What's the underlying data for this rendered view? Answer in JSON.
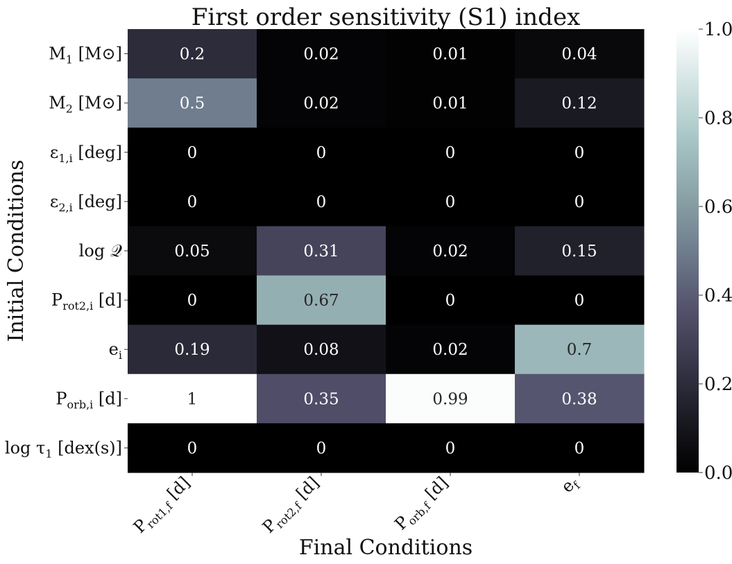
{
  "chart_data": {
    "type": "heatmap",
    "title": "First order sensitivity (S1) index",
    "xlabel": "Final Conditions",
    "ylabel": "Initial Conditions",
    "columns": [
      {
        "base": "P",
        "sub": "rot1,f",
        "unit": " [d]"
      },
      {
        "base": "P",
        "sub": "rot2,f",
        "unit": " [d]"
      },
      {
        "base": "P",
        "sub": "orb,f",
        "unit": " [d]"
      },
      {
        "base": "e",
        "sub": "f",
        "unit": ""
      }
    ],
    "rows": [
      {
        "base": "M",
        "sub": "1",
        "unit": " [M⊙]"
      },
      {
        "base": "M",
        "sub": "2",
        "unit": " [M⊙]"
      },
      {
        "base": "ε",
        "sub": "1,i",
        "unit": " [deg]"
      },
      {
        "base": "ε",
        "sub": "2,i",
        "unit": " [deg]"
      },
      {
        "base": "log 𝒬",
        "sub": "",
        "unit": ""
      },
      {
        "base": "P",
        "sub": "rot2,i",
        "unit": " [d]"
      },
      {
        "base": "e",
        "sub": "i",
        "unit": ""
      },
      {
        "base": "P",
        "sub": "orb,i",
        "unit": " [d]"
      },
      {
        "base": "log τ",
        "sub": "1",
        "unit": " [dex(s)]"
      }
    ],
    "values": [
      [
        0.2,
        0.02,
        0.01,
        0.04
      ],
      [
        0.5,
        0.02,
        0.01,
        0.12
      ],
      [
        0,
        0,
        0,
        0
      ],
      [
        0,
        0,
        0,
        0
      ],
      [
        0.05,
        0.31,
        0.02,
        0.15
      ],
      [
        0,
        0.67,
        0,
        0
      ],
      [
        0.19,
        0.08,
        0.02,
        0.7
      ],
      [
        1,
        0.35,
        0.99,
        0.38
      ],
      [
        0,
        0,
        0,
        0
      ]
    ],
    "labels": [
      [
        "0.2",
        "0.02",
        "0.01",
        "0.04"
      ],
      [
        "0.5",
        "0.02",
        "0.01",
        "0.12"
      ],
      [
        "0",
        "0",
        "0",
        "0"
      ],
      [
        "0",
        "0",
        "0",
        "0"
      ],
      [
        "0.05",
        "0.31",
        "0.02",
        "0.15"
      ],
      [
        "0",
        "0.67",
        "0",
        "0"
      ],
      [
        "0.19",
        "0.08",
        "0.02",
        "0.7"
      ],
      [
        "1",
        "0.35",
        "0.99",
        "0.38"
      ],
      [
        "0",
        "0",
        "0",
        "0"
      ]
    ],
    "colorbar": {
      "range": [
        0.0,
        1.0
      ],
      "ticks": [
        0.0,
        0.2,
        0.4,
        0.6,
        0.8,
        1.0
      ],
      "tick_labels": [
        "0.0",
        "0.2",
        "0.4",
        "0.6",
        "0.8",
        "1.0"
      ],
      "colormap": "bone",
      "colormap_stops": [
        "#000000",
        "#1b1b24",
        "#38374a",
        "#55536e",
        "#6f7d8e",
        "#8aa3a7",
        "#a7c5c5",
        "#d2e3e3",
        "#ffffff"
      ]
    },
    "text_colors": {
      "light": "#ffffff",
      "dark": "#262626"
    }
  }
}
